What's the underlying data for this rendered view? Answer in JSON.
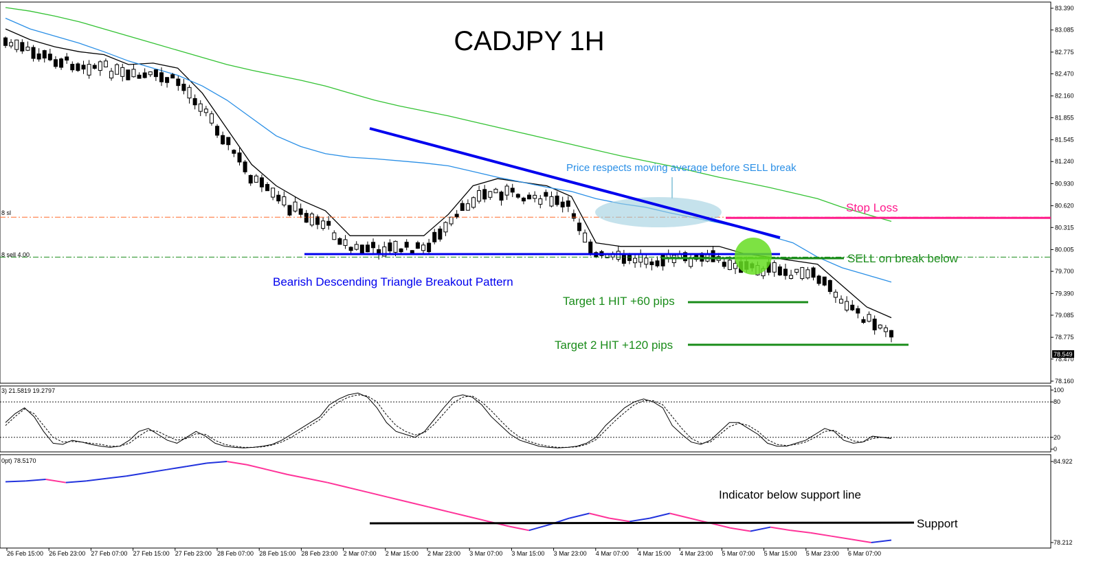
{
  "chart_data": [
    {
      "type": "candlestick",
      "title": "CADJPY 1H",
      "colors": {
        "bull_candle": "#ffffff",
        "bear_candle": "#000000",
        "ma_fast": "#000000",
        "ma_mid": "#2a8fe6",
        "ma_slow": "#33c233",
        "triangle_lines": "#0000ee",
        "stop_loss": "#ff1a8c",
        "targets": "#1a8c1a"
      },
      "y_axis_ticks": [
        "83.390",
        "83.085",
        "82.775",
        "82.470",
        "82.160",
        "81.855",
        "81.545",
        "81.240",
        "80.930",
        "80.620",
        "80.315",
        "80.005",
        "79.700",
        "79.390",
        "79.085",
        "78.775",
        "78.470",
        "78.160"
      ],
      "ylim": [
        78.16,
        83.39
      ],
      "current_price": "78.549",
      "line_labels": {
        "stop_level": "8 sl",
        "sell_level": "8 sell 4.00"
      },
      "levels": {
        "stop_loss": 80.45,
        "sell": 79.9,
        "target1": 79.3,
        "target2": 78.7
      },
      "moving_averages": [
        {
          "name": "fast",
          "values": [
            83.1,
            82.95,
            82.85,
            82.78,
            82.74,
            82.6,
            82.62,
            82.55,
            82.2,
            81.7,
            81.2,
            80.9,
            80.7,
            80.55,
            80.2,
            80.2,
            80.2,
            80.2,
            80.5,
            80.9,
            81.0,
            80.95,
            80.9,
            80.75,
            80.1,
            80.05,
            80.05,
            80.05,
            80.05,
            80.05,
            79.95,
            79.9,
            79.85,
            79.8,
            79.5,
            79.2,
            79.05
          ]
        },
        {
          "name": "mid",
          "values": [
            83.25,
            83.1,
            83.0,
            82.9,
            82.78,
            82.65,
            82.55,
            82.45,
            82.3,
            82.1,
            81.85,
            81.6,
            81.45,
            81.35,
            81.3,
            81.28,
            81.25,
            81.22,
            81.18,
            81.1,
            81.02,
            80.95,
            80.88,
            80.82,
            80.72,
            80.65,
            80.6,
            80.52,
            80.45,
            80.38,
            80.3,
            80.2,
            80.1,
            79.9,
            79.75,
            79.65,
            79.55
          ]
        },
        {
          "name": "slow",
          "values": [
            83.4,
            83.35,
            83.28,
            83.2,
            83.1,
            83.0,
            82.9,
            82.8,
            82.7,
            82.6,
            82.52,
            82.45,
            82.38,
            82.3,
            82.2,
            82.1,
            82.02,
            81.95,
            81.88,
            81.8,
            81.72,
            81.64,
            81.56,
            81.48,
            81.4,
            81.32,
            81.25,
            81.18,
            81.1,
            81.02,
            80.95,
            80.88,
            80.8,
            80.72,
            80.6,
            80.5,
            80.4
          ]
        }
      ],
      "annotations": {
        "pattern": "Bearish Descending Triangle Breakout Pattern",
        "ma_note": "Price respects moving average before SELL break",
        "stop_loss": "Stop Loss",
        "sell": "SELL on break below",
        "target1": "Target 1 HIT +60 pips",
        "target2": "Target 2 HIT +120 pips"
      }
    },
    {
      "type": "line",
      "header": "3) 21.5819 19.2797",
      "y_ticks": [
        "100",
        "80",
        "20",
        "0"
      ],
      "ylim": [
        0,
        100
      ],
      "series": [
        {
          "values": [
            45,
            60,
            70,
            55,
            30,
            10,
            8,
            15,
            12,
            8,
            5,
            3,
            5,
            15,
            30,
            35,
            25,
            15,
            10,
            20,
            30,
            22,
            10,
            5,
            3,
            2,
            3,
            5,
            8,
            15,
            25,
            35,
            45,
            55,
            75,
            85,
            92,
            95,
            88,
            70,
            45,
            30,
            25,
            20,
            30,
            50,
            70,
            88,
            92,
            88,
            75,
            55,
            40,
            25,
            15,
            10,
            5,
            3,
            2,
            3,
            5,
            10,
            20,
            40,
            55,
            70,
            80,
            85,
            80,
            70,
            40,
            25,
            12,
            8,
            15,
            30,
            45,
            45,
            35,
            25,
            10,
            5,
            5,
            10,
            15,
            25,
            35,
            30,
            15,
            10,
            12,
            22,
            20,
            18
          ]
        },
        {
          "values": [
            40,
            55,
            68,
            60,
            40,
            20,
            12,
            13,
            12,
            10,
            8,
            5,
            5,
            10,
            22,
            32,
            30,
            22,
            15,
            18,
            26,
            25,
            15,
            8,
            5,
            3,
            3,
            4,
            7,
            12,
            20,
            30,
            40,
            50,
            68,
            80,
            88,
            92,
            90,
            80,
            58,
            40,
            30,
            24,
            28,
            42,
            60,
            78,
            88,
            90,
            80,
            65,
            48,
            32,
            20,
            13,
            8,
            5,
            3,
            3,
            4,
            8,
            16,
            32,
            48,
            62,
            75,
            82,
            82,
            75,
            55,
            35,
            18,
            10,
            12,
            25,
            38,
            44,
            40,
            30,
            16,
            8,
            6,
            8,
            12,
            20,
            30,
            32,
            22,
            14,
            12,
            18,
            20,
            19
          ]
        }
      ]
    },
    {
      "type": "line",
      "header": "0pt) 78.5170",
      "y_ticks": [
        "84.922",
        "78.212"
      ],
      "support_label": "Support",
      "indicator_note": "Indicator below support line",
      "colors": {
        "rising": "#2233dd",
        "falling": "#ff3399",
        "support": "#000000"
      },
      "series": [
        {
          "values": [
            0.75,
            0.76,
            0.78,
            0.74,
            0.76,
            0.79,
            0.82,
            0.86,
            0.9,
            0.94,
            0.98,
            1.0,
            0.96,
            0.9,
            0.84,
            0.79,
            0.74,
            0.68,
            0.62,
            0.56,
            0.5,
            0.44,
            0.38,
            0.32,
            0.26,
            0.2,
            0.15,
            0.22,
            0.3,
            0.36,
            0.3,
            0.26,
            0.3,
            0.36,
            0.3,
            0.24,
            0.18,
            0.14,
            0.19,
            0.15,
            0.12,
            0.08,
            0.04,
            0.0,
            0.03
          ]
        }
      ]
    }
  ],
  "x_axis_ticks": [
    "26 Feb 15:00",
    "26 Feb 23:00",
    "27 Feb 07:00",
    "27 Feb 15:00",
    "27 Feb 23:00",
    "28 Feb 07:00",
    "28 Feb 15:00",
    "28 Feb 23:00",
    "2 Mar 07:00",
    "2 Mar 15:00",
    "2 Mar 23:00",
    "3 Mar 07:00",
    "3 Mar 15:00",
    "3 Mar 23:00",
    "4 Mar 07:00",
    "4 Mar 15:00",
    "4 Mar 23:00",
    "5 Mar 07:00",
    "5 Mar 15:00",
    "5 Mar 23:00",
    "6 Mar 07:00"
  ]
}
